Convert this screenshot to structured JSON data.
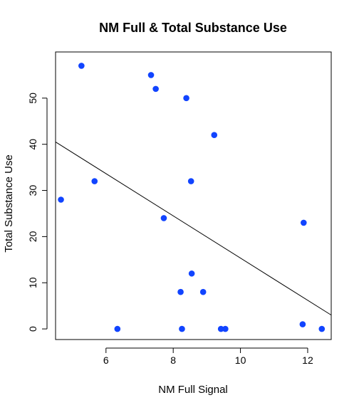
{
  "chart_data": {
    "type": "scatter",
    "title": "NM Full & Total Substance Use",
    "xlabel": "NM Full Signal",
    "ylabel": "Total Substance Use",
    "xlim": [
      4.5,
      12.7
    ],
    "ylim": [
      -2.3,
      60
    ],
    "x_ticks": [
      6,
      8,
      10,
      12
    ],
    "y_ticks": [
      0,
      10,
      20,
      30,
      40,
      50
    ],
    "grid": false,
    "legend": "none",
    "point_color": "#1144ff",
    "line_color": "#000000",
    "points": [
      {
        "x": 4.66,
        "y": 28
      },
      {
        "x": 5.27,
        "y": 57
      },
      {
        "x": 5.66,
        "y": 32
      },
      {
        "x": 6.34,
        "y": 0
      },
      {
        "x": 7.34,
        "y": 55
      },
      {
        "x": 7.48,
        "y": 52
      },
      {
        "x": 7.72,
        "y": 24
      },
      {
        "x": 8.22,
        "y": 8
      },
      {
        "x": 8.26,
        "y": 0
      },
      {
        "x": 8.39,
        "y": 50
      },
      {
        "x": 8.53,
        "y": 32
      },
      {
        "x": 8.55,
        "y": 12
      },
      {
        "x": 8.89,
        "y": 8
      },
      {
        "x": 9.22,
        "y": 42
      },
      {
        "x": 9.42,
        "y": 0
      },
      {
        "x": 9.55,
        "y": 0
      },
      {
        "x": 11.85,
        "y": 1
      },
      {
        "x": 11.88,
        "y": 23
      },
      {
        "x": 12.42,
        "y": 0
      }
    ],
    "fit_line": {
      "x": [
        4.5,
        12.7
      ],
      "y": [
        40.5,
        3.0
      ]
    }
  }
}
